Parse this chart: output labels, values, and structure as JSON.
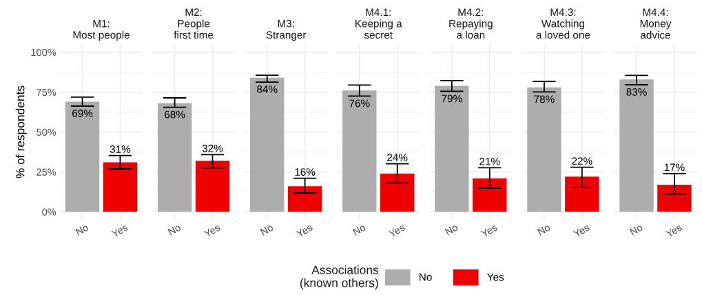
{
  "chart_data": [
    {
      "type": "bar",
      "title": "M1:\nMost people",
      "ylabel": "% of respondents",
      "categories": [
        "No",
        "Yes"
      ],
      "series": [
        {
          "name": "No",
          "color": "#adadad",
          "values": [
            69,
            null
          ],
          "errors": [
            [
              66.2,
              71.9
            ],
            null
          ],
          "value_labels": [
            "69%",
            null
          ]
        },
        {
          "name": "Yes",
          "color": "#ee0000",
          "values": [
            null,
            31
          ],
          "errors": [
            null,
            [
              26.9,
              35.3
            ]
          ],
          "value_labels": [
            null,
            "31%"
          ]
        }
      ],
      "ylim": [
        -5,
        105
      ],
      "yticks": [
        {
          "value": 0,
          "label": "0%"
        },
        {
          "value": 25,
          "label": "25%"
        },
        {
          "value": 50,
          "label": "50%"
        },
        {
          "value": 75,
          "label": "75%"
        },
        {
          "value": 100,
          "label": "100%"
        }
      ],
      "grid": true,
      "legend": "bottom",
      "legend_title": "Associations\n(known others)"
    },
    {
      "type": "bar",
      "title": "M2:\nPeople\nfirst time",
      "categories": [
        "No",
        "Yes"
      ],
      "series": [
        {
          "color": "#adadad",
          "values": [
            68,
            null
          ],
          "errors": [
            [
              65.5,
              71.4
            ],
            null
          ],
          "value_labels": [
            "68%",
            null
          ]
        },
        {
          "color": "#ee0000",
          "values": [
            null,
            32
          ],
          "errors": [
            null,
            [
              27.5,
              35.8
            ]
          ],
          "value_labels": [
            null,
            "32%"
          ]
        }
      ],
      "ylim": [
        -5,
        105
      ],
      "yticks": [
        0,
        25,
        50,
        75,
        100
      ],
      "grid": true,
      "tick_labels": "x"
    },
    {
      "type": "bar",
      "title": "M3:\nStranger",
      "categories": [
        "No",
        "Yes"
      ],
      "series": [
        {
          "color": "#adadad",
          "values": [
            84,
            null
          ],
          "errors": [
            [
              81.3,
              85.6
            ],
            null
          ],
          "value_labels": [
            "84%",
            null
          ]
        },
        {
          "color": "#ee0000",
          "values": [
            null,
            16
          ],
          "errors": [
            null,
            [
              11.8,
              21.0
            ]
          ],
          "value_labels": [
            null,
            "16%"
          ]
        }
      ],
      "ylim": [
        -5,
        105
      ],
      "yticks": [
        0,
        25,
        50,
        75,
        100
      ],
      "grid": true,
      "tick_labels": "x"
    },
    {
      "type": "bar",
      "title": "M4.1:\nKeeping a\nsecret",
      "categories": [
        "No",
        "Yes"
      ],
      "series": [
        {
          "color": "#adadad",
          "values": [
            76,
            null
          ],
          "errors": [
            [
              72.5,
              79.4
            ],
            null
          ],
          "value_labels": [
            "76%",
            null
          ]
        },
        {
          "color": "#ee0000",
          "values": [
            null,
            24
          ],
          "errors": [
            null,
            [
              18.0,
              30.1
            ]
          ],
          "value_labels": [
            null,
            "24%"
          ]
        }
      ],
      "ylim": [
        -5,
        105
      ],
      "yticks": [
        0,
        25,
        50,
        75,
        100
      ],
      "grid": true,
      "tick_labels": "x"
    },
    {
      "type": "bar",
      "title": "M4.2:\nRepaying\na loan",
      "categories": [
        "No",
        "Yes"
      ],
      "series": [
        {
          "color": "#adadad",
          "values": [
            79,
            null
          ],
          "errors": [
            [
              75.5,
              82.2
            ],
            null
          ],
          "value_labels": [
            "79%",
            null
          ]
        },
        {
          "color": "#ee0000",
          "values": [
            null,
            21
          ],
          "errors": [
            null,
            [
              14.8,
              27.6
            ]
          ],
          "value_labels": [
            null,
            "21%"
          ]
        }
      ],
      "ylim": [
        -5,
        105
      ],
      "yticks": [
        0,
        25,
        50,
        75,
        100
      ],
      "grid": true,
      "tick_labels": "x"
    },
    {
      "type": "bar",
      "title": "M4.3:\nWatching\na loved one",
      "categories": [
        "No",
        "Yes"
      ],
      "series": [
        {
          "color": "#adadad",
          "values": [
            78,
            null
          ],
          "errors": [
            [
              75.1,
              81.7
            ],
            null
          ],
          "value_labels": [
            "78%",
            null
          ]
        },
        {
          "color": "#ee0000",
          "values": [
            null,
            22
          ],
          "errors": [
            null,
            [
              15.3,
              27.9
            ]
          ],
          "value_labels": [
            null,
            "22%"
          ]
        }
      ],
      "ylim": [
        -5,
        105
      ],
      "yticks": [
        0,
        25,
        50,
        75,
        100
      ],
      "grid": true,
      "tick_labels": "x"
    },
    {
      "type": "bar",
      "title": "M4.4:\nMoney\nadvice",
      "categories": [
        "No",
        "Yes"
      ],
      "series": [
        {
          "color": "#adadad",
          "values": [
            83,
            null
          ],
          "errors": [
            [
              79.6,
              85.5
            ],
            null
          ],
          "value_labels": [
            "83%",
            null
          ]
        },
        {
          "color": "#ee0000",
          "values": [
            null,
            17
          ],
          "errors": [
            null,
            [
              11.1,
              23.9
            ]
          ],
          "value_labels": [
            null,
            "17%"
          ]
        }
      ],
      "ylim": [
        -5,
        105
      ],
      "yticks": [
        0,
        25,
        50,
        75,
        100
      ],
      "grid": true,
      "tick_labels": "x"
    }
  ]
}
